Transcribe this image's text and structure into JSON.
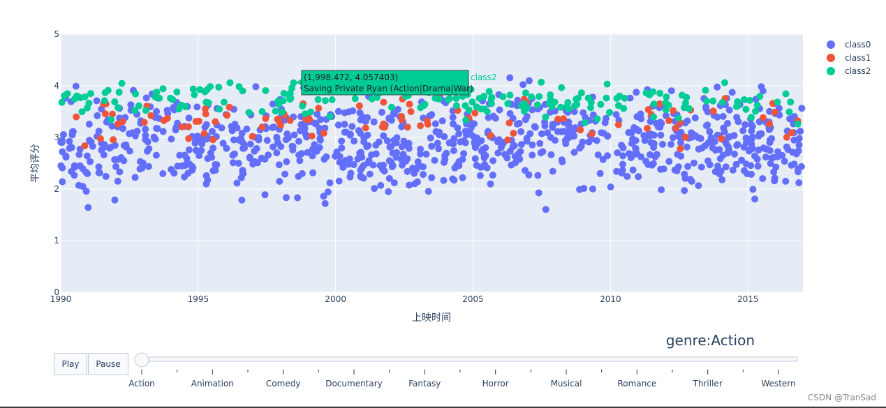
{
  "chart_data": {
    "type": "scatter",
    "title": "",
    "xlabel": "上映时间",
    "ylabel": "平均评分",
    "xlim": [
      1990,
      2017
    ],
    "ylim": [
      0,
      5
    ],
    "x_ticks": [
      "1990",
      "1995",
      "2000",
      "2005",
      "2010",
      "2015"
    ],
    "y_ticks": [
      "0",
      "1",
      "2",
      "3",
      "4",
      "5"
    ],
    "grid": true,
    "legend_position": "top-right",
    "series": [
      {
        "name": "class0",
        "color": "#636efa"
      },
      {
        "name": "class1",
        "color": "#ef553b"
      },
      {
        "name": "class2",
        "color": "#00cc96"
      }
    ],
    "tooltip": {
      "line1": "(1,998.472, 4.057403)",
      "line2": "Saving Private Ryan (Action|Drama|War)",
      "series_name": "class2",
      "x": 1998.472,
      "y": 4.057403
    }
  },
  "controls": {
    "play_label": "Play",
    "pause_label": "Pause",
    "current_frame": "genre:Action",
    "slider_value": 0,
    "slider_steps": [
      "Action",
      "Animation",
      "Comedy",
      "Documentary",
      "Fantasy",
      "Horror",
      "Musical",
      "Romance",
      "Thriller",
      "Western"
    ]
  },
  "watermark": "CSDN @TranSad"
}
